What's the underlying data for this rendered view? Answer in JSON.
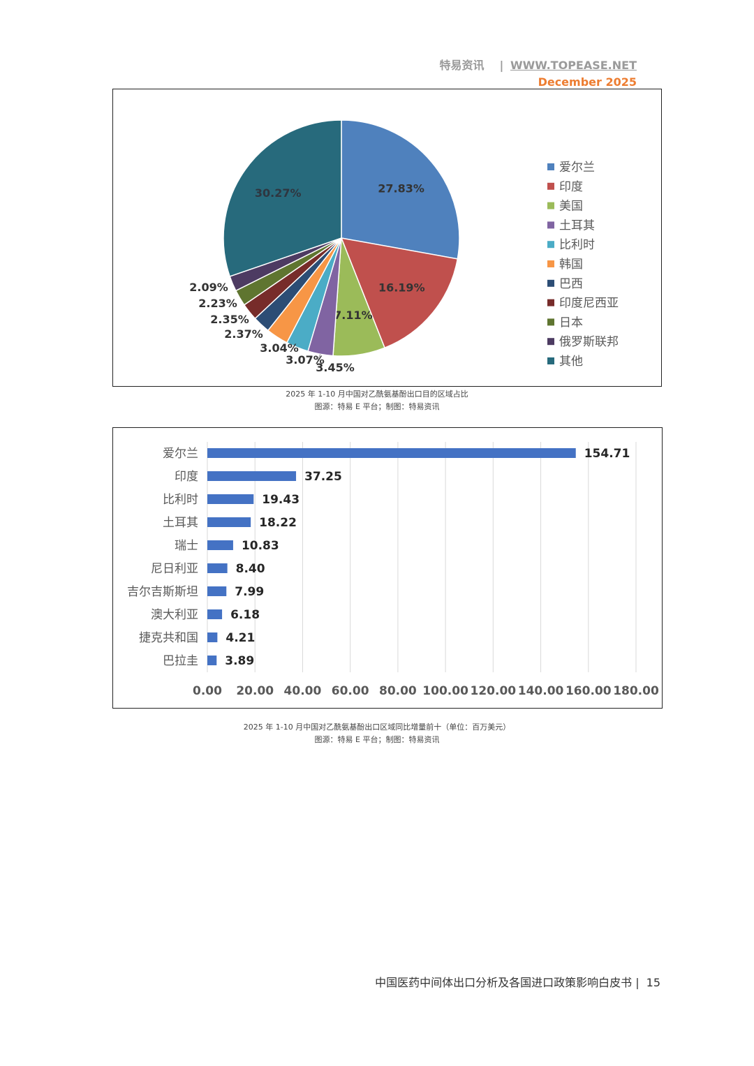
{
  "header": {
    "brand": "特易资讯",
    "separator": "|",
    "url": "WWW.TOPEASE.NET",
    "date": "December  2025"
  },
  "colors": {
    "palette": [
      "#4f81bd",
      "#c0504d",
      "#9bbb59",
      "#8064a2",
      "#4bacc6",
      "#f79646",
      "#2c4d75",
      "#772c2a",
      "#5f7530",
      "#4d3b62",
      "#276a7c"
    ],
    "bar": "#4472c4"
  },
  "chart_data": [
    {
      "type": "pie",
      "categories": [
        "爱尔兰",
        "印度",
        "美国",
        "土耳其",
        "比利时",
        "韩国",
        "巴西",
        "印度尼西亚",
        "日本",
        "俄罗斯联邦",
        "其他"
      ],
      "values": [
        27.83,
        16.19,
        7.11,
        3.45,
        3.07,
        3.04,
        2.37,
        2.35,
        2.23,
        2.09,
        30.27
      ],
      "labels": [
        "27.83%",
        "16.19%",
        "7.11%",
        "3.45%",
        "3.07%",
        "3.04%",
        "2.37%",
        "2.35%",
        "2.23%",
        "2.09%",
        "30.27%"
      ],
      "legend": "right"
    },
    {
      "type": "bar",
      "orientation": "horizontal",
      "categories": [
        "爱尔兰",
        "印度",
        "比利时",
        "土耳其",
        "瑞士",
        "尼日利亚",
        "吉尔吉斯斯坦",
        "澳大利亚",
        "捷克共和国",
        "巴拉圭"
      ],
      "values": [
        154.71,
        37.25,
        19.43,
        18.22,
        10.83,
        8.4,
        7.99,
        6.18,
        4.21,
        3.89
      ],
      "labels": [
        "154.71",
        "37.25",
        "19.43",
        "18.22",
        "10.83",
        "8.40",
        "7.99",
        "6.18",
        "4.21",
        "3.89"
      ],
      "xlim": [
        0,
        180
      ],
      "xticks": [
        "0.00",
        "20.00",
        "40.00",
        "60.00",
        "80.00",
        "100.00",
        "120.00",
        "140.00",
        "160.00",
        "180.00"
      ],
      "grid": true
    }
  ],
  "captions": {
    "pie_title": "2025  年  1-10  月中国对乙酰氨基酚出口目的区域占比",
    "pie_source": "图源：特易  E  平台；制图：特易资讯",
    "bar_title": "2025  年  1-10  月中国对乙酰氨基酚出口区域同比增量前十（单位：百万美元）",
    "bar_source": "图源：特易  E  平台；制图：特易资讯"
  },
  "footer": {
    "title": "中国医药中间体出口分析及各国进口政策影响白皮书 |",
    "page": "15"
  }
}
